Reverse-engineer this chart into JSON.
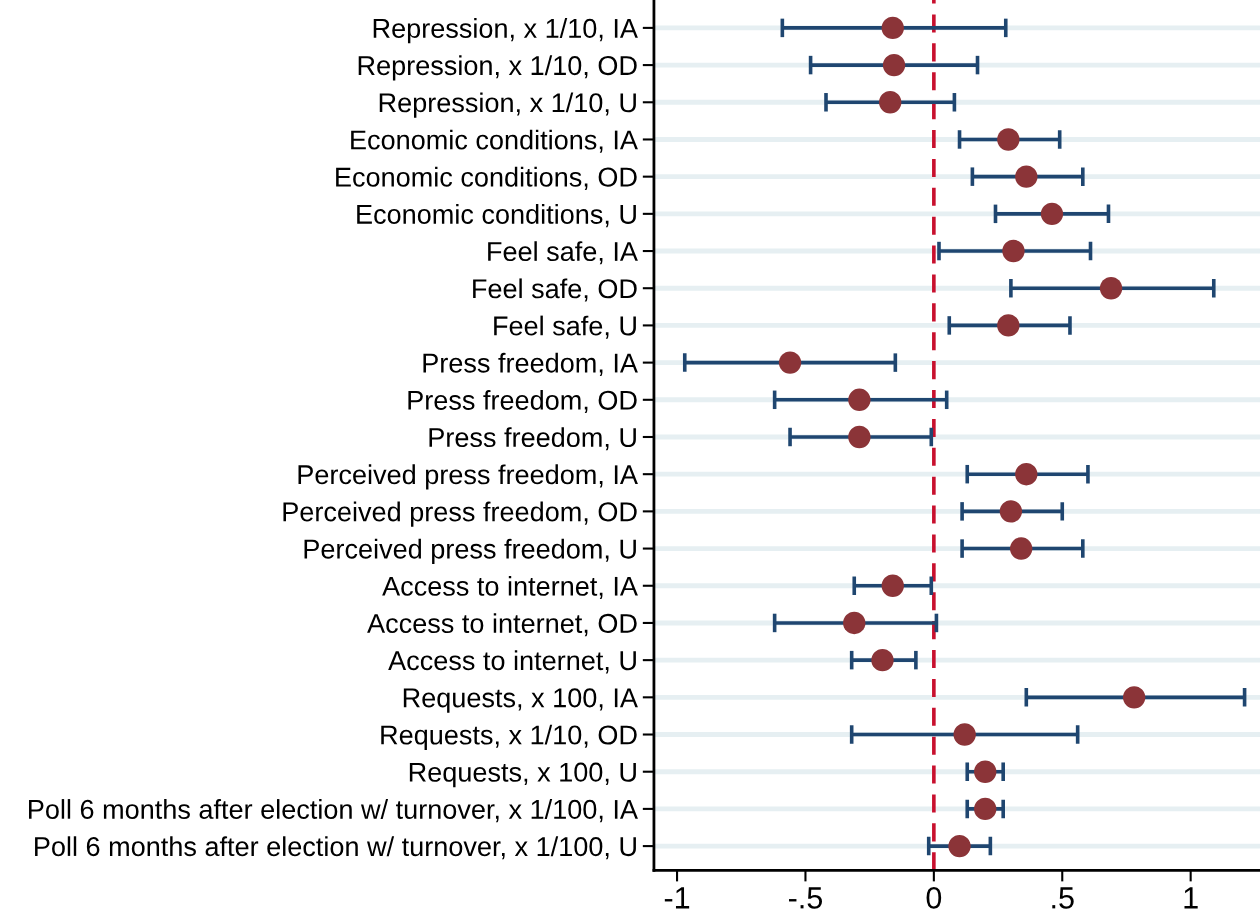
{
  "chart_data": {
    "type": "scatter",
    "orientation": "horizontal",
    "categories": [
      "Repression, x 1/10, IA",
      "Repression, x 1/10, OD",
      "Repression, x 1/10, U",
      "Economic conditions, IA",
      "Economic conditions, OD",
      "Economic conditions, U",
      "Feel safe, IA",
      "Feel safe, OD",
      "Feel safe, U",
      "Press freedom, IA",
      "Press freedom, OD",
      "Press freedom, U",
      "Perceived press freedom, IA",
      "Perceived press freedom, OD",
      "Perceived press freedom, U",
      "Access to internet, IA",
      "Access to internet, OD",
      "Access to internet, U",
      "Requests, x 100, IA",
      "Requests, x 1/10, OD",
      "Requests, x 100, U",
      "Poll 6 months after election w/ turnover, x 1/100, IA",
      "Poll 6 months after election w/ turnover, x 1/100, U"
    ],
    "series": [
      {
        "color": "#8b3438",
        "values": [
          -0.16,
          -0.155,
          -0.17,
          0.29,
          0.36,
          0.46,
          0.31,
          0.69,
          0.29,
          -0.56,
          -0.29,
          -0.29,
          0.36,
          0.3,
          0.34,
          -0.16,
          -0.31,
          -0.2,
          0.78,
          0.12,
          0.2,
          0.2,
          0.1
        ],
        "errors": [
          [
            -0.59,
            0.28
          ],
          [
            -0.48,
            0.17
          ],
          [
            -0.42,
            0.08
          ],
          [
            0.1,
            0.49
          ],
          [
            0.15,
            0.58
          ],
          [
            0.24,
            0.68
          ],
          [
            0.02,
            0.61
          ],
          [
            0.3,
            1.09
          ],
          [
            0.06,
            0.53
          ],
          [
            -0.97,
            -0.15
          ],
          [
            -0.62,
            0.05
          ],
          [
            -0.56,
            -0.01
          ],
          [
            0.13,
            0.6
          ],
          [
            0.11,
            0.5
          ],
          [
            0.11,
            0.58
          ],
          [
            -0.31,
            -0.01
          ],
          [
            -0.62,
            0.01
          ],
          [
            -0.32,
            -0.07
          ],
          [
            0.36,
            1.21
          ],
          [
            -0.32,
            0.56
          ],
          [
            0.13,
            0.27
          ],
          [
            0.13,
            0.27
          ],
          [
            -0.02,
            0.22
          ]
        ]
      }
    ],
    "xlim": [
      -1.09,
      1.27
    ],
    "xticks": [
      -1,
      {
        "value": -0.5,
        "label": "-.5"
      },
      0,
      {
        "value": 0.5,
        "label": ".5"
      },
      1
    ],
    "ref_lines": [
      {
        "axis": "x",
        "value": 0,
        "color": "#c8102e",
        "line_style": "dashed"
      }
    ],
    "grid": "y",
    "marker": "circle"
  }
}
